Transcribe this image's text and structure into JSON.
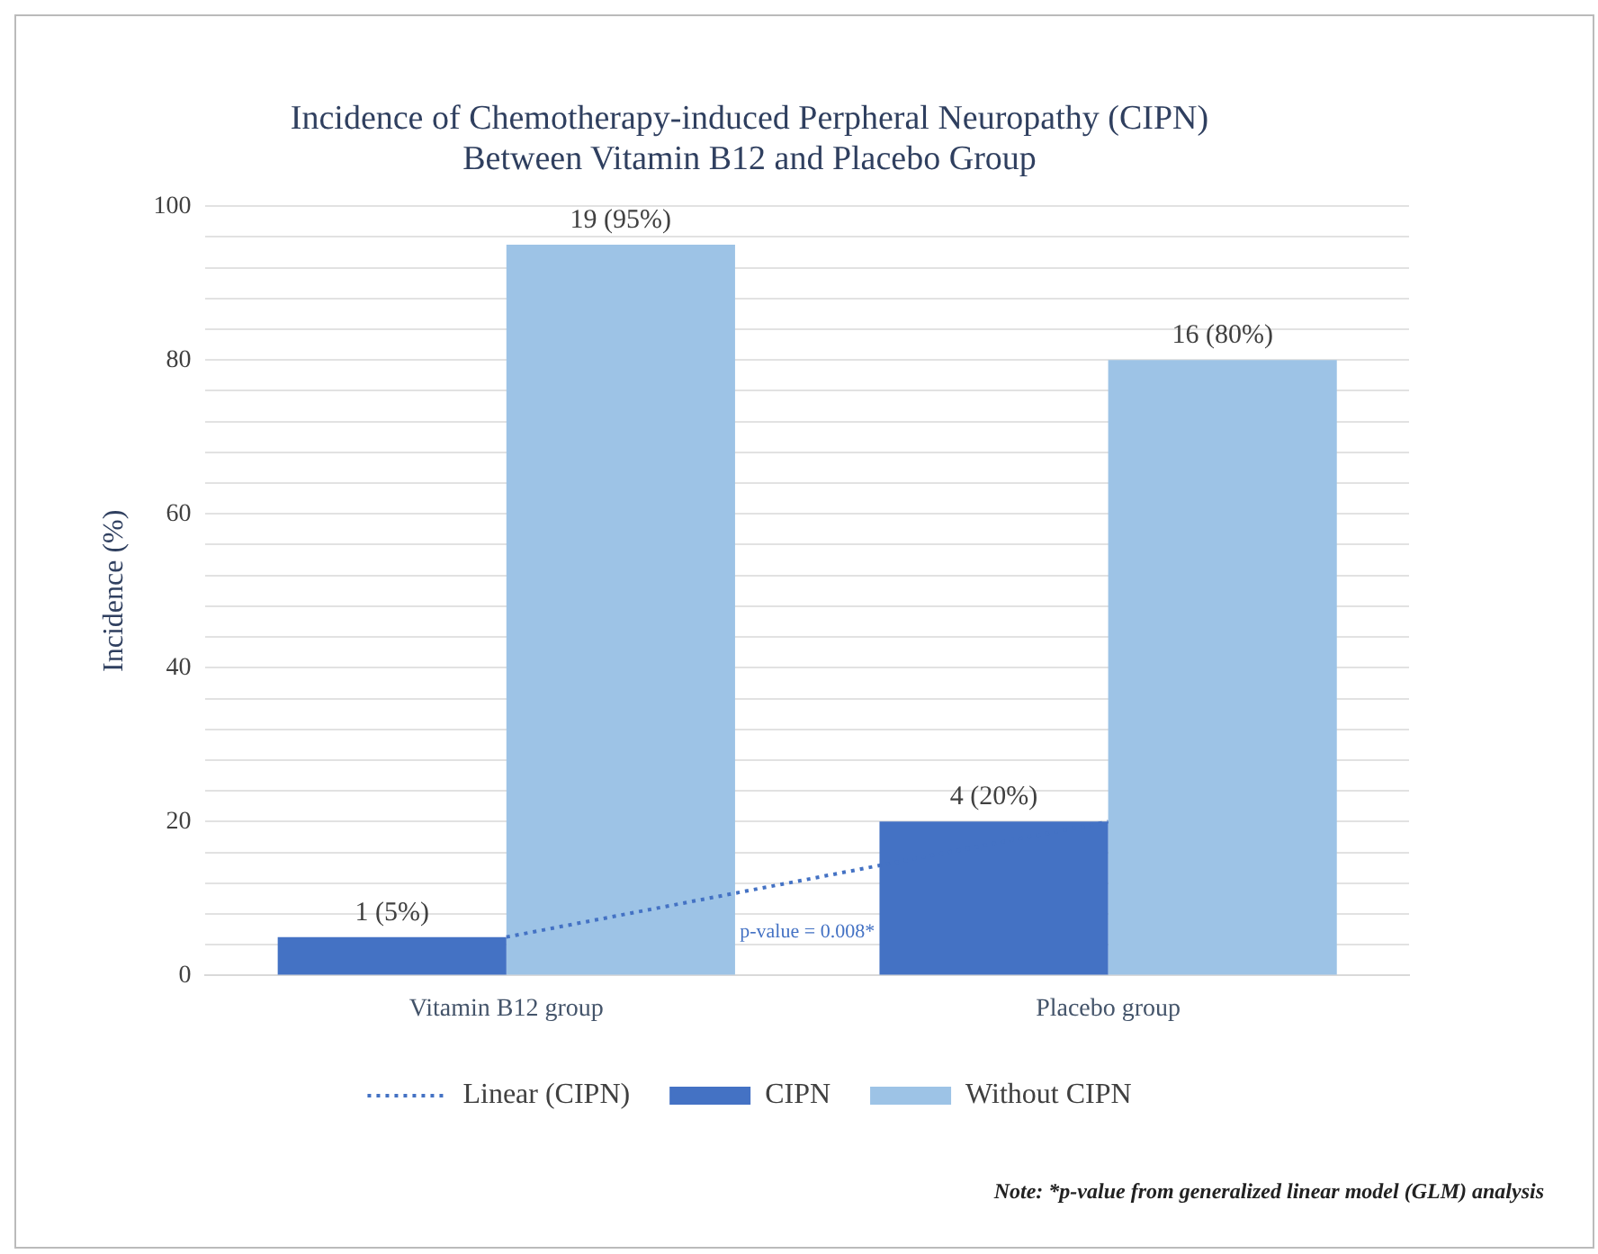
{
  "chart_data": {
    "type": "bar",
    "title": "Incidence of Chemotherapy-induced Perpheral Neuropathy (CIPN)\nBetween Vitamin B12 and Placebo Group",
    "ylabel": "Incidence (%)",
    "categories": [
      "Vitamin B12 group",
      "Placebo group"
    ],
    "series": [
      {
        "name": "CIPN",
        "color": "#4472c4",
        "values": [
          5,
          20
        ],
        "value_labels": [
          "1 (5%)",
          "4 (20%)"
        ]
      },
      {
        "name": "Without CIPN",
        "color": "#9dc3e6",
        "values": [
          95,
          80
        ],
        "value_labels": [
          "19 (95%)",
          "16 (80%)"
        ]
      },
      {
        "name": "Linear (CIPN)",
        "type": "line",
        "color": "#4472c4",
        "line_style": "dotted",
        "marker": "none",
        "values": [
          5,
          20
        ]
      }
    ],
    "ylim": [
      0,
      100
    ],
    "yticks": [
      0,
      {
        "value": 4,
        "label": null
      },
      {
        "value": 8,
        "label": null
      },
      {
        "value": 12,
        "label": null
      },
      {
        "value": 16,
        "label": null
      },
      20,
      {
        "value": 24,
        "label": null
      },
      {
        "value": 28,
        "label": null
      },
      {
        "value": 32,
        "label": null
      },
      {
        "value": 36,
        "label": null
      },
      40,
      {
        "value": 44,
        "label": null
      },
      {
        "value": 48,
        "label": null
      },
      {
        "value": 52,
        "label": null
      },
      {
        "value": 56,
        "label": null
      },
      60,
      {
        "value": 64,
        "label": null
      },
      {
        "value": 68,
        "label": null
      },
      {
        "value": 72,
        "label": null
      },
      {
        "value": 76,
        "label": null
      },
      80,
      {
        "value": 84,
        "label": null
      },
      {
        "value": 88,
        "label": null
      },
      {
        "value": 92,
        "label": null
      },
      {
        "value": 96,
        "label": null
      },
      100
    ],
    "grid": "y",
    "legend": "bottom",
    "annotations": [
      "p-value = 0.008*",
      "Note: *p-value from generalized linear model (GLM) analysis"
    ]
  }
}
